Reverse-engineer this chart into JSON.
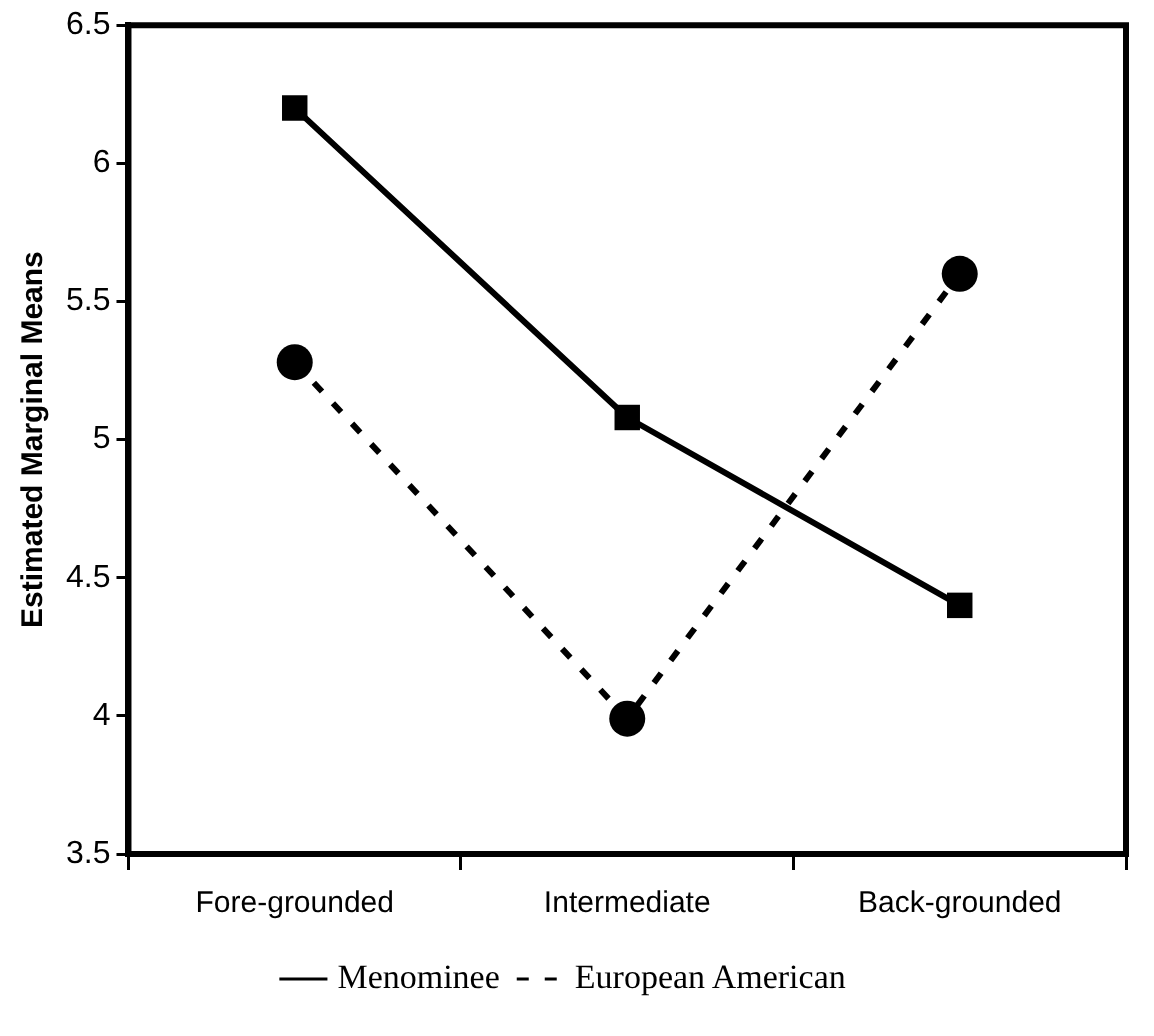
{
  "chart_data": {
    "type": "line",
    "ylabel": "Estimated Marginal Means",
    "categories": [
      "Fore-grounded",
      "Intermediate",
      "Back-grounded"
    ],
    "series": [
      {
        "name": "Menominee",
        "color": "#000000",
        "values": [
          6.2,
          5.08,
          4.4
        ],
        "marker": "square",
        "line_style": "solid"
      },
      {
        "name": "European American",
        "color": "#000000",
        "values": [
          5.28,
          3.99,
          5.6
        ],
        "marker": "circle",
        "line_style": "dashed"
      }
    ],
    "ylim": [
      3.5,
      6.5
    ],
    "yticks": [
      3.5,
      4,
      4.5,
      5,
      5.5,
      6,
      6.5
    ],
    "grid": false,
    "legend": "bottom"
  }
}
